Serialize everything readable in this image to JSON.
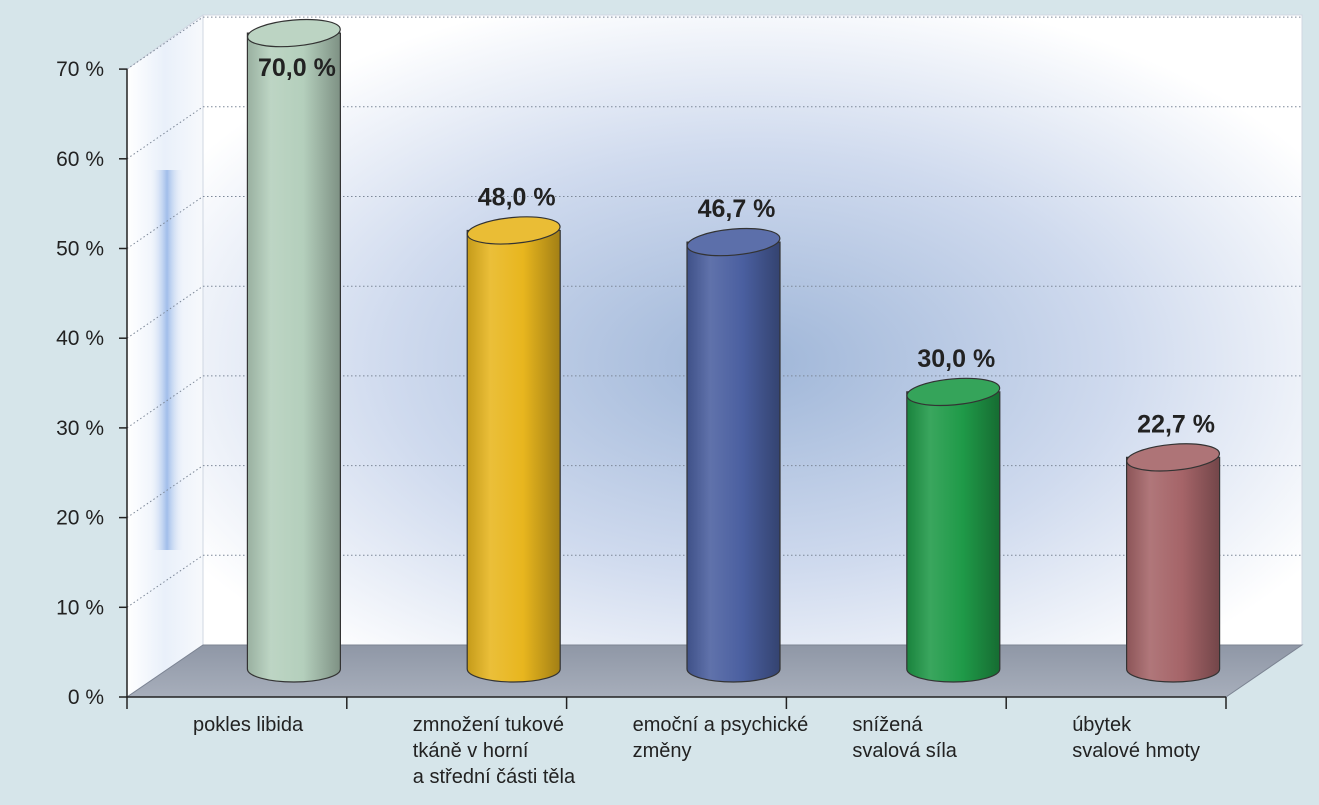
{
  "chart_data": {
    "type": "bar",
    "categories": [
      [
        "pokles libida"
      ],
      [
        "zmnožení tukové",
        "tkáně v horní",
        "a střední části těla"
      ],
      [
        "emoční a psychické",
        "změny"
      ],
      [
        "snížená",
        "svalová síla"
      ],
      [
        "úbytek",
        "svalové hmoty"
      ]
    ],
    "values": [
      70.0,
      48.0,
      46.7,
      30.0,
      22.7
    ],
    "value_labels": [
      "70,0 %",
      "48,0 %",
      "46,7 %",
      "30,0 %",
      "22,7 %"
    ],
    "ytick_labels": [
      "0 %",
      "10 %",
      "20 %",
      "30 %",
      "40 %",
      "50 %",
      "60 %",
      "70 %"
    ],
    "ylim": [
      0,
      70
    ],
    "grid": true,
    "style": "3d-cylinder",
    "colors": [
      "#b4cfbc",
      "#e8b61e",
      "#4a5fa0",
      "#1f9a48",
      "#a56468"
    ]
  }
}
